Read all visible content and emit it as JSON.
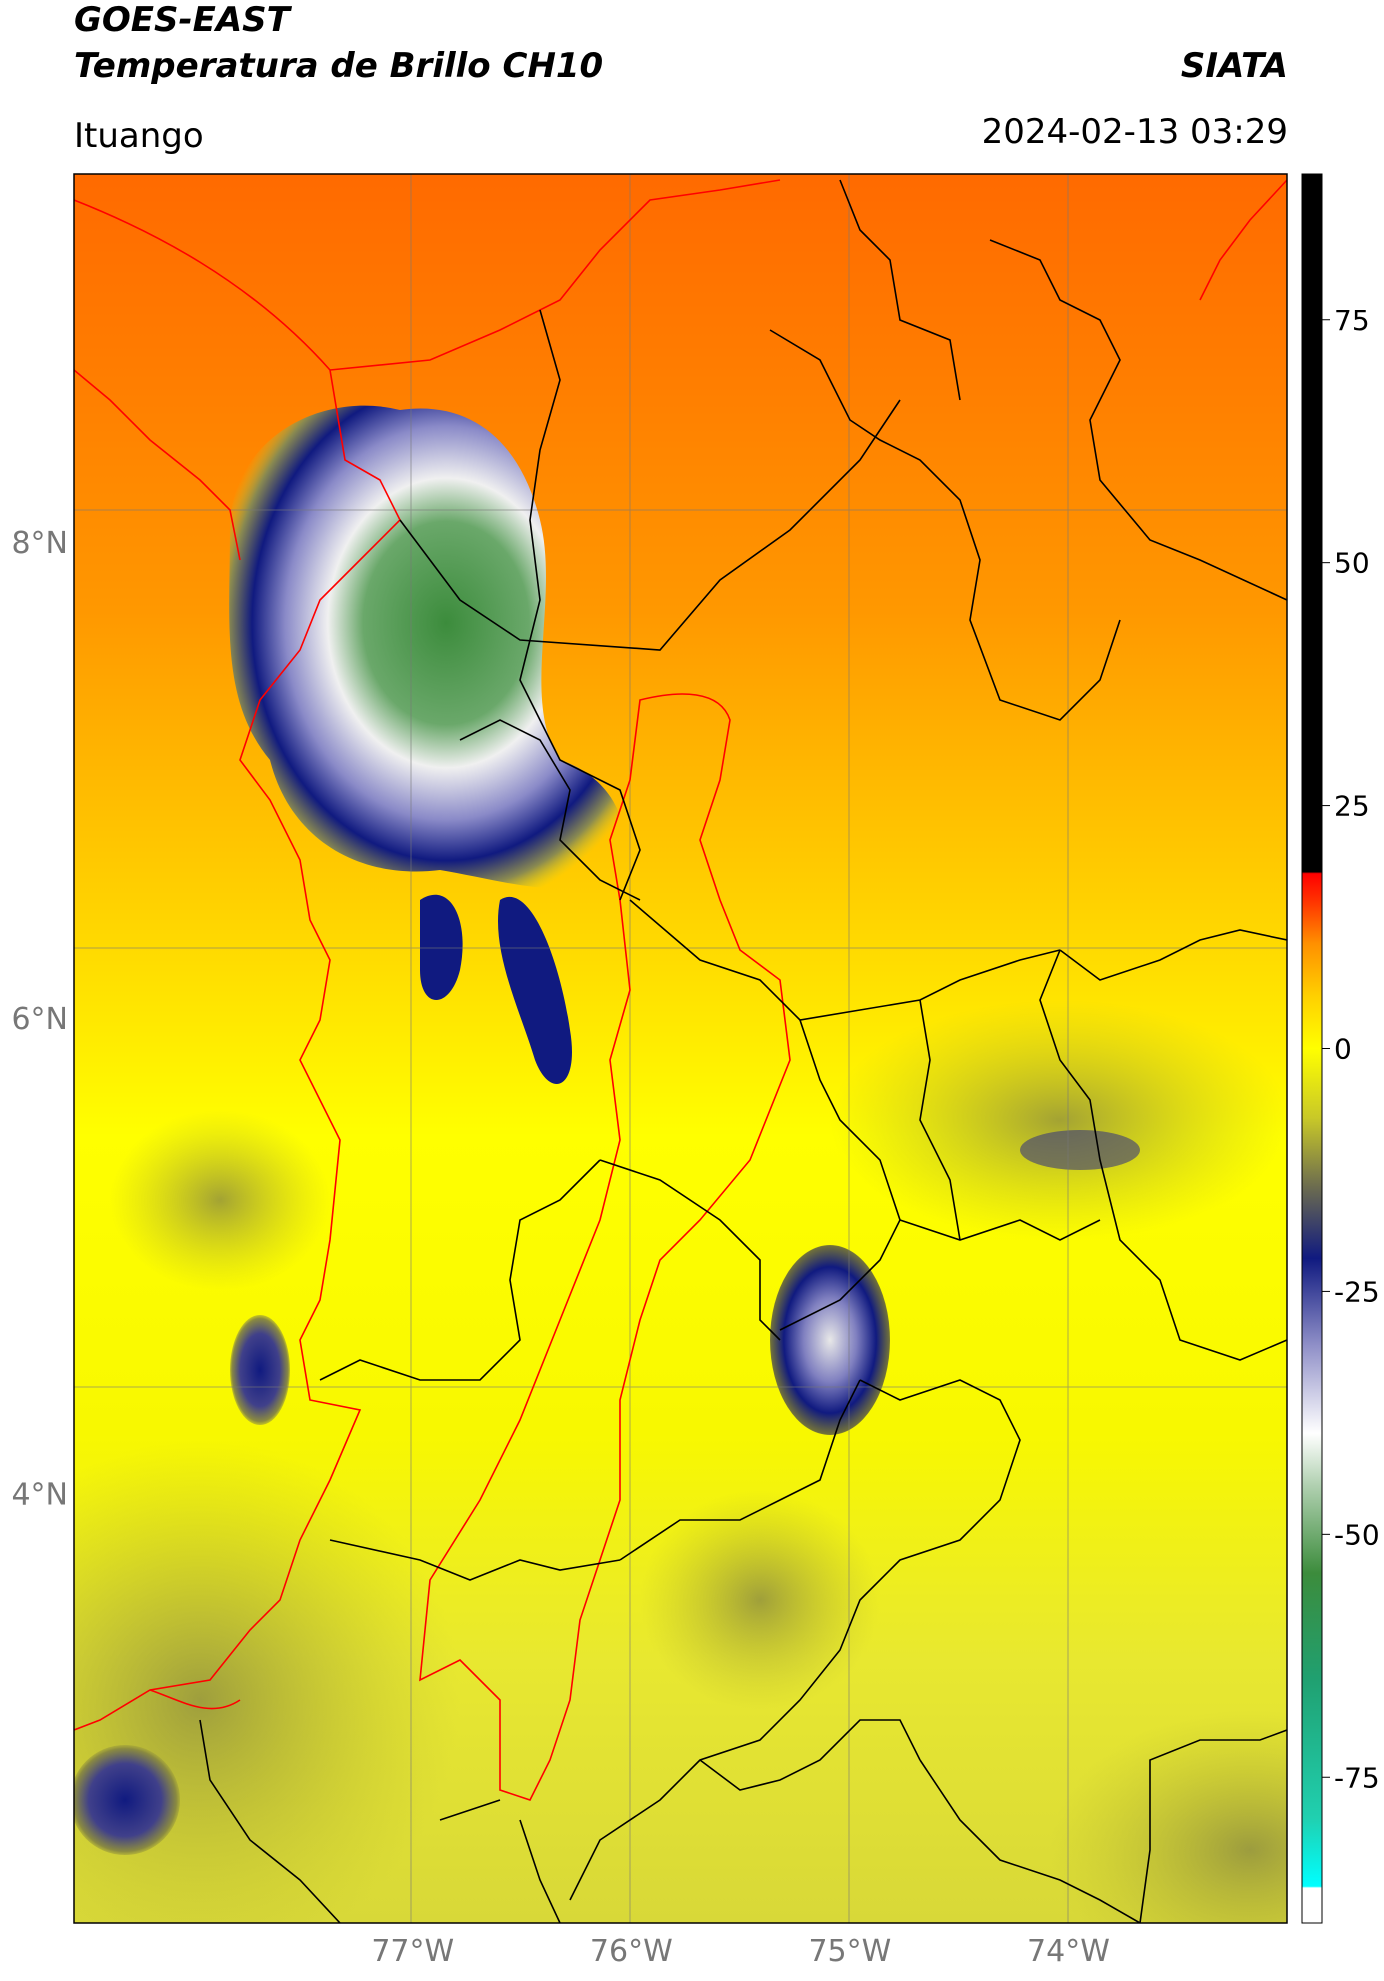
{
  "header": {
    "title_line1": "GOES-EAST",
    "title_line2": "Temperatura de Brillo CH10",
    "brand": "SIATA",
    "place": "Ituango",
    "timestamp": "2024-02-13 03:29"
  },
  "map": {
    "lat_labels": [
      "8°N",
      "6°N",
      "4°N"
    ],
    "lon_labels": [
      "77°W",
      "76°W",
      "75°W",
      "74°W"
    ],
    "lat_values": [
      8,
      6,
      4
    ],
    "lon_values": [
      -77,
      -76,
      -75,
      -74
    ],
    "extent": {
      "lon_min": -78.55,
      "lon_max": -73.0,
      "lat_min": 2.2,
      "lat_max": 9.55
    },
    "colors": {
      "warm_top": "#ff7a00",
      "warm_mid": "#ffb400",
      "yellow": "#ffff00",
      "olive": "#b8b820",
      "navy": "#101a80",
      "white": "#f4f4f4",
      "green": "#3c8c3c",
      "red_boundary": "#ff0000",
      "black_boundary": "#000000"
    }
  },
  "colorbar": {
    "labels": [
      "75",
      "50",
      "25",
      "0",
      "-25",
      "-50",
      "-75"
    ],
    "values": [
      75,
      50,
      25,
      0,
      -25,
      -50,
      -75
    ],
    "vmin": -90,
    "vmax": 90
  }
}
